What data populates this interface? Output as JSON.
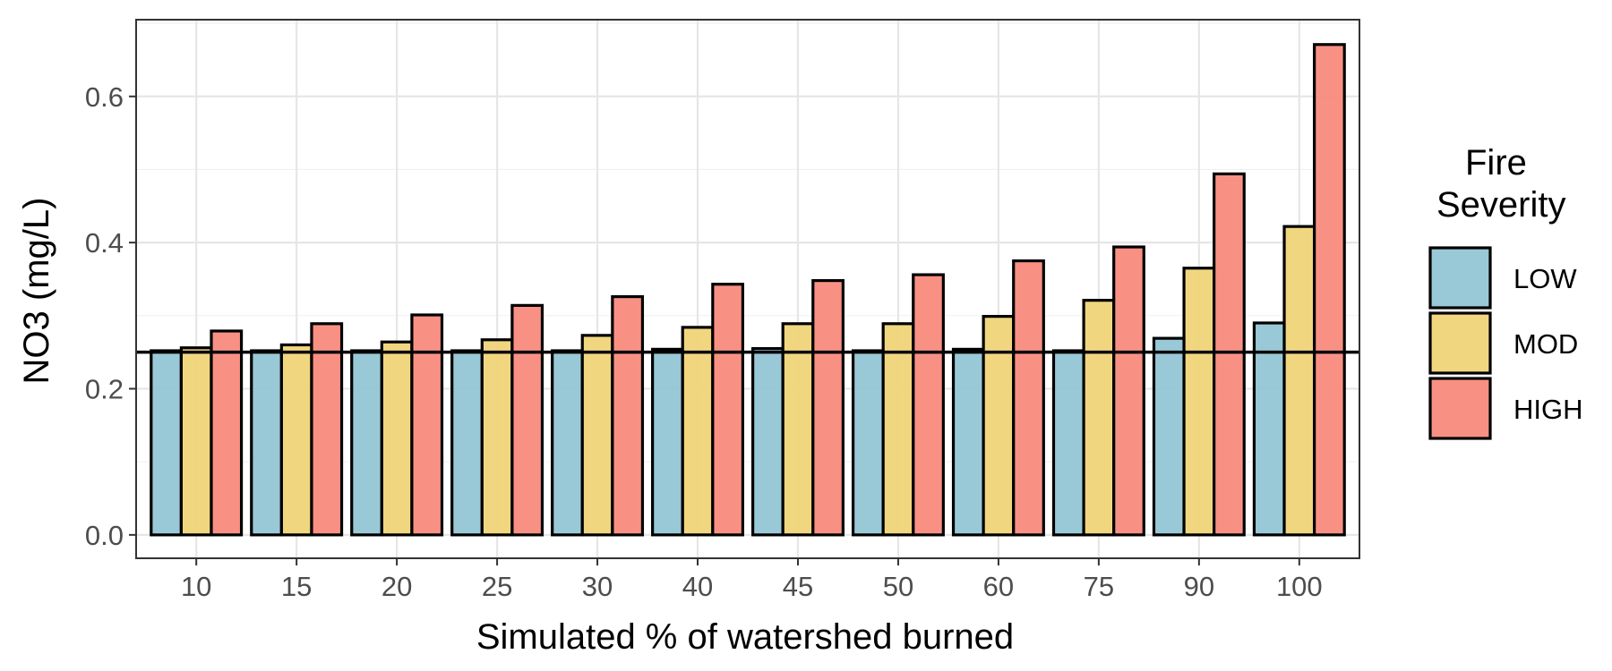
{
  "chart_data": {
    "type": "bar",
    "title": "",
    "xlabel": "Simulated % of watershed burned",
    "ylabel": "NO3 (mg/L)",
    "ylim": [
      -0.032,
      0.705
    ],
    "yticks": [
      "0.0",
      "0.2",
      "0.4",
      "0.6"
    ],
    "ytick_values": [
      0,
      0.2,
      0.4,
      0.6
    ],
    "categories": [
      "10",
      "15",
      "20",
      "25",
      "30",
      "40",
      "45",
      "50",
      "60",
      "75",
      "90",
      "100"
    ],
    "series": [
      {
        "name": "LOW",
        "color": "#94c6d4",
        "values": [
          0.252,
          0.252,
          0.252,
          0.252,
          0.252,
          0.254,
          0.255,
          0.252,
          0.254,
          0.252,
          0.269,
          0.29
        ]
      },
      {
        "name": "MOD",
        "color": "#f0d479",
        "values": [
          0.256,
          0.26,
          0.264,
          0.267,
          0.273,
          0.284,
          0.289,
          0.289,
          0.299,
          0.321,
          0.365,
          0.422
        ]
      },
      {
        "name": "HIGH",
        "color": "#f88b7d",
        "values": [
          0.279,
          0.289,
          0.301,
          0.314,
          0.326,
          0.343,
          0.348,
          0.356,
          0.375,
          0.394,
          0.494,
          0.671
        ]
      }
    ],
    "reference_line": 0.25,
    "grid": true,
    "legend": {
      "title_line1": "Fire",
      "title_line2": "Severity",
      "placement": "right"
    }
  }
}
